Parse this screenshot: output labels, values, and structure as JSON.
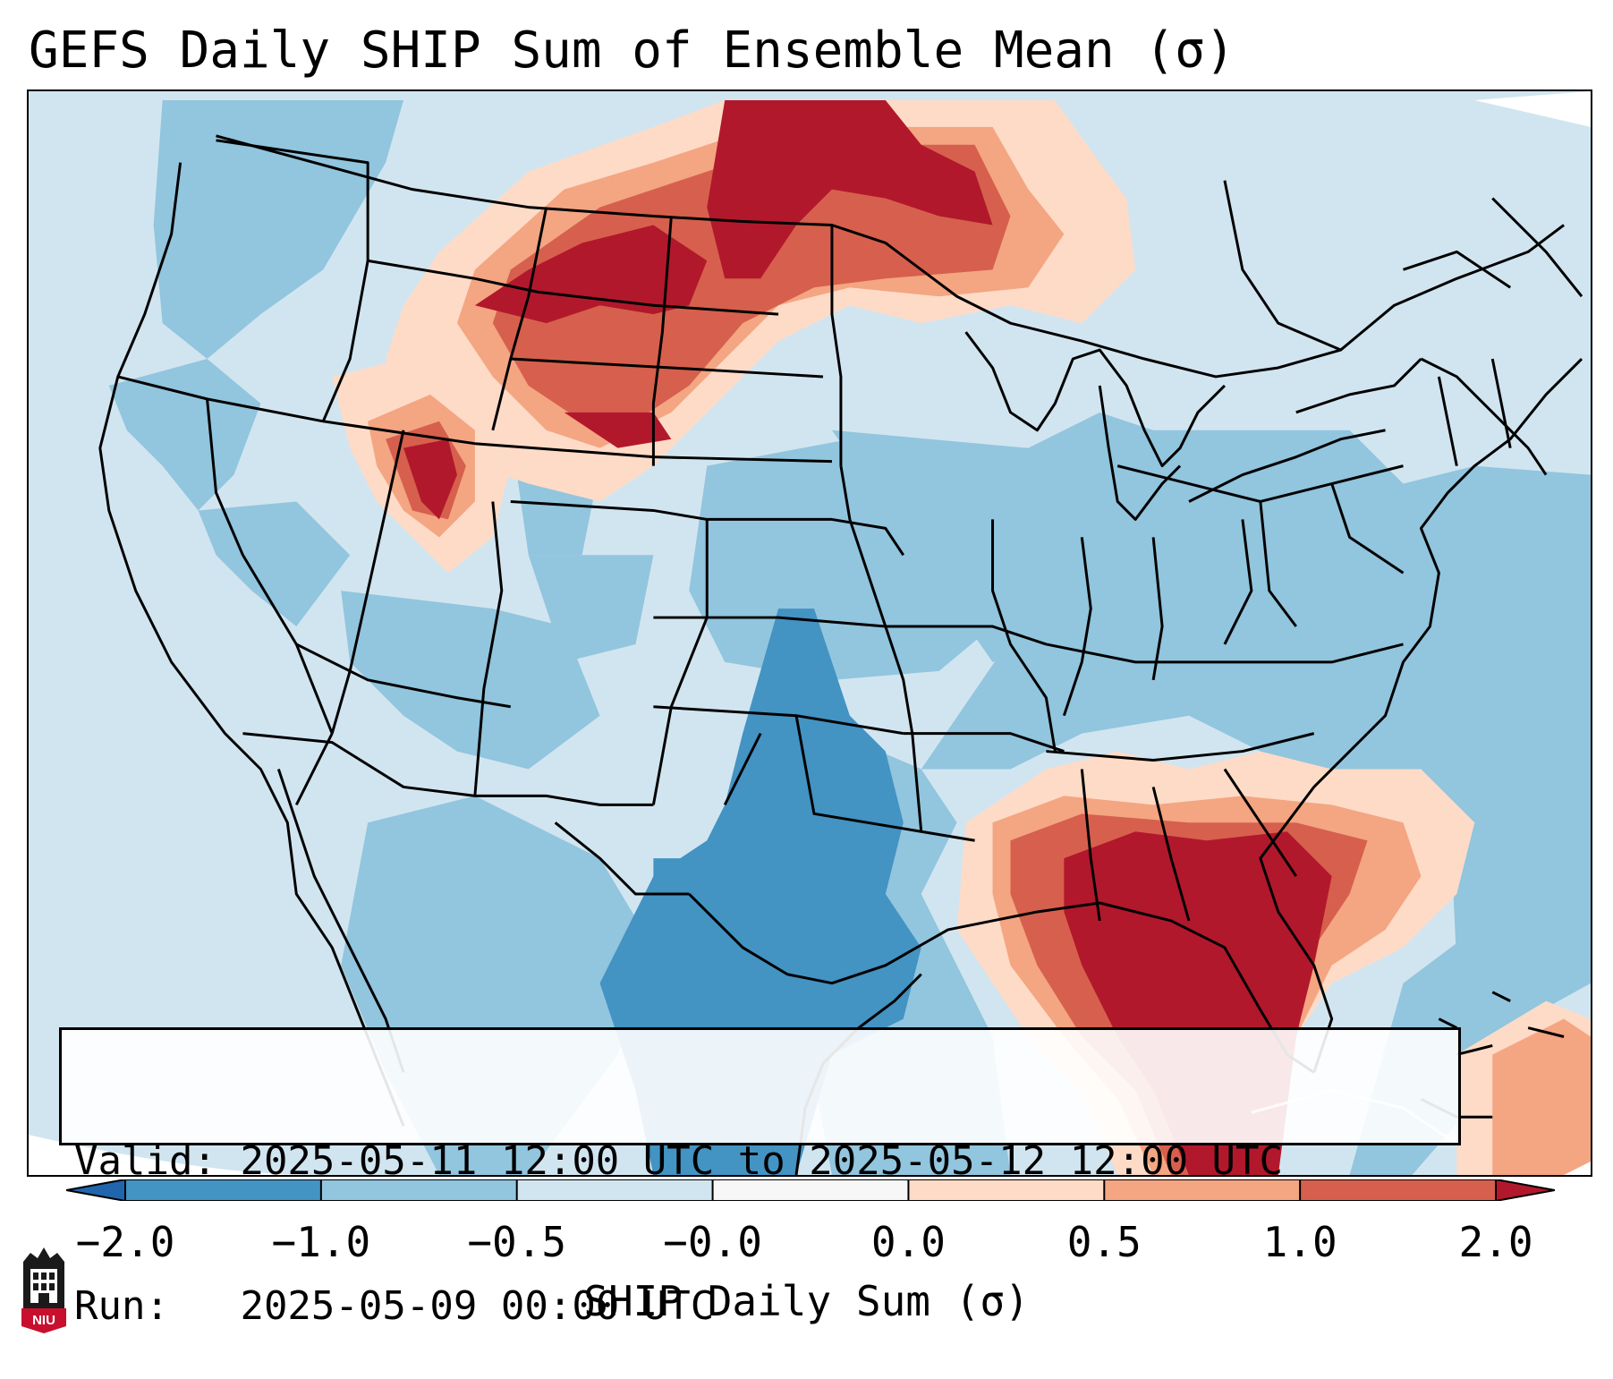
{
  "title": "GEFS Daily SHIP Sum of Ensemble Mean (σ)",
  "info": {
    "valid_label": "Valid:",
    "valid_value": "2025-05-11 12:00 UTC to 2025-05-12 12:00 UTC",
    "run_label": "Run:",
    "run_value": "2025-05-09 00:00 UTC"
  },
  "colorbar": {
    "label": "SHIP Daily Sum (σ)",
    "ticks": [
      "−2.0",
      "−1.0",
      "−0.5",
      "−0.0",
      "0.0",
      "0.5",
      "1.0",
      "2.0"
    ],
    "bins": [
      {
        "color": "#2166ac"
      },
      {
        "color": "#4393c3"
      },
      {
        "color": "#92c5de"
      },
      {
        "color": "#d1e5f0"
      },
      {
        "color": "#f7f7f7"
      },
      {
        "color": "#fddbc7"
      },
      {
        "color": "#f4a582"
      },
      {
        "color": "#d6604d"
      },
      {
        "color": "#b2182b"
      }
    ]
  },
  "map": {
    "background_color": "#d1e5f0",
    "highlighted_regions": [
      "Northern Plains / Montana high SHIP",
      "Idaho / Utah high SHIP",
      "Florida / Southeast Gulf Coast high SHIP",
      "Texas / Oklahoma low SHIP"
    ]
  },
  "logo": {
    "name": "niu-logo-icon",
    "text": "NIU"
  }
}
